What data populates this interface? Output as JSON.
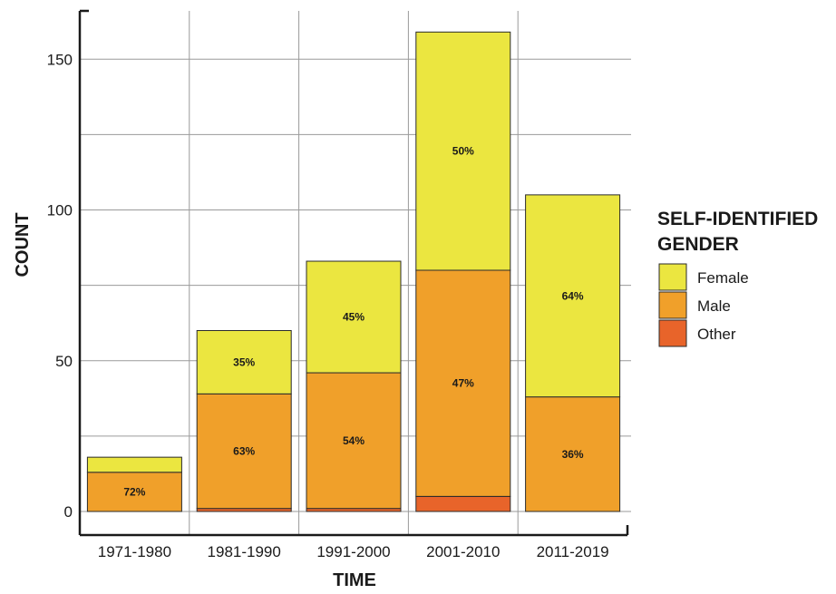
{
  "chart_data": {
    "type": "bar",
    "stacked": true,
    "title": "",
    "xlabel": "TIME",
    "ylabel": "COUNT",
    "ylim": [
      0,
      165
    ],
    "yticks": [
      0,
      50,
      100,
      150
    ],
    "grid": true,
    "legend_position": "right",
    "legend_title": "SELF-IDENTIFIED GENDER",
    "categories": [
      "1971-1980",
      "1981-1990",
      "1991-2000",
      "2001-2010",
      "2011-2019"
    ],
    "series": [
      {
        "name": "Other",
        "color": "#e8642a",
        "values": [
          0,
          1,
          1,
          5,
          0
        ]
      },
      {
        "name": "Male",
        "color": "#f0a02a",
        "values": [
          13,
          38,
          45,
          75,
          38
        ]
      },
      {
        "name": "Female",
        "color": "#ebe640",
        "values": [
          5,
          21,
          37,
          79,
          67
        ]
      }
    ],
    "legend_order": [
      "Female",
      "Male",
      "Other"
    ],
    "segment_labels": [
      {
        "category": "1971-1980",
        "series": "Male",
        "text": "72%"
      },
      {
        "category": "1981-1990",
        "series": "Female",
        "text": "35%"
      },
      {
        "category": "1981-1990",
        "series": "Male",
        "text": "63%"
      },
      {
        "category": "1991-2000",
        "series": "Female",
        "text": "45%"
      },
      {
        "category": "1991-2000",
        "series": "Male",
        "text": "54%"
      },
      {
        "category": "2001-2010",
        "series": "Female",
        "text": "50%"
      },
      {
        "category": "2001-2010",
        "series": "Male",
        "text": "47%"
      },
      {
        "category": "2011-2019",
        "series": "Female",
        "text": "64%"
      },
      {
        "category": "2011-2019",
        "series": "Male",
        "text": "36%"
      }
    ]
  }
}
